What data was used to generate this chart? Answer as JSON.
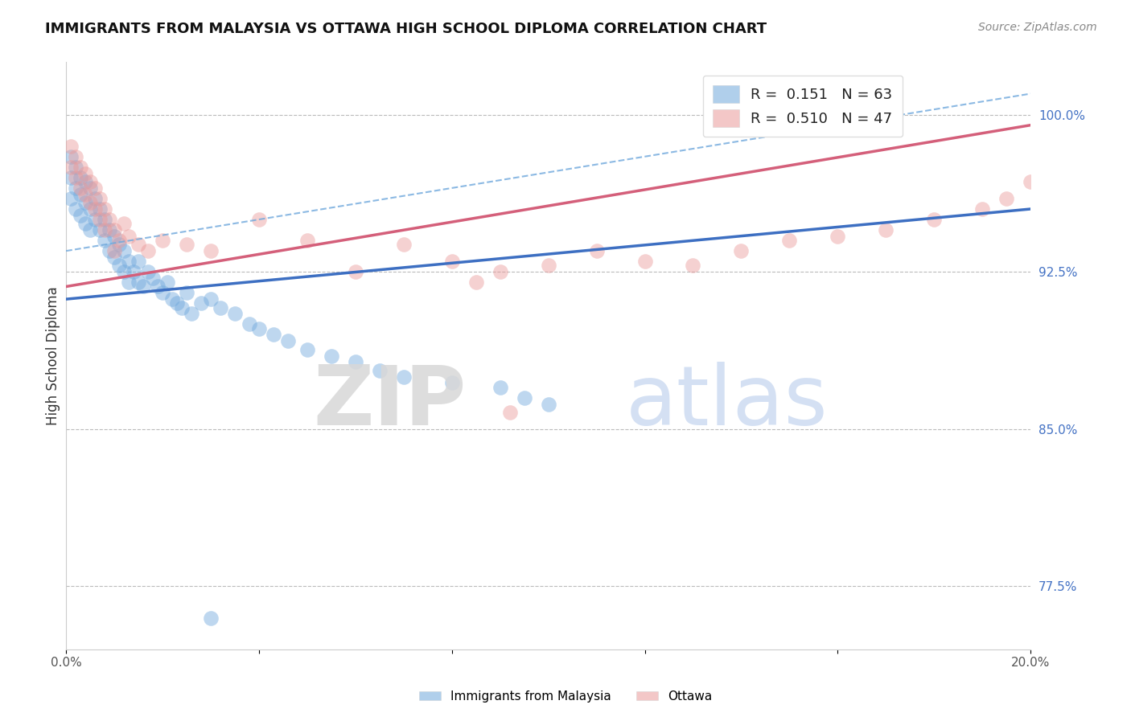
{
  "title": "IMMIGRANTS FROM MALAYSIA VS OTTAWA HIGH SCHOOL DIPLOMA CORRELATION CHART",
  "source": "Source: ZipAtlas.com",
  "ylabel": "High School Diploma",
  "x_min": 0.0,
  "x_max": 0.2,
  "y_min": 0.745,
  "y_max": 1.025,
  "x_tick_positions": [
    0.0,
    0.04,
    0.08,
    0.12,
    0.16,
    0.2
  ],
  "x_tick_labels": [
    "0.0%",
    "",
    "",
    "",
    "",
    "20.0%"
  ],
  "y_ticks_right": [
    0.775,
    0.85,
    0.925,
    1.0
  ],
  "y_tick_labels_right": [
    "77.5%",
    "85.0%",
    "92.5%",
    "100.0%"
  ],
  "legend_r1": "R =  0.151   N = 63",
  "legend_r2": "R =  0.510   N = 47",
  "series1_color": "#6fa8dc",
  "series2_color": "#ea9999",
  "series1_label": "Immigrants from Malaysia",
  "series2_label": "Ottawa",
  "line1_color": "#3d6fc2",
  "line2_color": "#d45f7a",
  "dashed_color": "#6fa8dc",
  "blue_x": [
    0.001,
    0.001,
    0.001,
    0.002,
    0.002,
    0.002,
    0.003,
    0.003,
    0.003,
    0.004,
    0.004,
    0.004,
    0.005,
    0.005,
    0.005,
    0.006,
    0.006,
    0.007,
    0.007,
    0.008,
    0.008,
    0.009,
    0.009,
    0.01,
    0.01,
    0.011,
    0.011,
    0.012,
    0.012,
    0.013,
    0.013,
    0.014,
    0.015,
    0.015,
    0.016,
    0.017,
    0.018,
    0.019,
    0.02,
    0.021,
    0.022,
    0.023,
    0.024,
    0.025,
    0.026,
    0.028,
    0.03,
    0.032,
    0.035,
    0.038,
    0.04,
    0.043,
    0.046,
    0.05,
    0.055,
    0.06,
    0.065,
    0.07,
    0.08,
    0.09,
    0.095,
    0.1,
    0.03
  ],
  "blue_y": [
    0.98,
    0.97,
    0.96,
    0.975,
    0.965,
    0.955,
    0.97,
    0.962,
    0.952,
    0.968,
    0.958,
    0.948,
    0.965,
    0.955,
    0.945,
    0.96,
    0.95,
    0.955,
    0.945,
    0.95,
    0.94,
    0.945,
    0.935,
    0.942,
    0.932,
    0.938,
    0.928,
    0.935,
    0.925,
    0.93,
    0.92,
    0.925,
    0.93,
    0.92,
    0.918,
    0.925,
    0.922,
    0.918,
    0.915,
    0.92,
    0.912,
    0.91,
    0.908,
    0.915,
    0.905,
    0.91,
    0.912,
    0.908,
    0.905,
    0.9,
    0.898,
    0.895,
    0.892,
    0.888,
    0.885,
    0.882,
    0.878,
    0.875,
    0.872,
    0.87,
    0.865,
    0.862,
    0.76
  ],
  "pink_x": [
    0.001,
    0.001,
    0.002,
    0.002,
    0.003,
    0.003,
    0.004,
    0.004,
    0.005,
    0.005,
    0.006,
    0.006,
    0.007,
    0.007,
    0.008,
    0.008,
    0.009,
    0.01,
    0.01,
    0.011,
    0.012,
    0.013,
    0.015,
    0.017,
    0.02,
    0.025,
    0.03,
    0.04,
    0.05,
    0.06,
    0.07,
    0.08,
    0.09,
    0.1,
    0.11,
    0.12,
    0.13,
    0.14,
    0.15,
    0.16,
    0.17,
    0.18,
    0.19,
    0.195,
    0.2,
    0.085,
    0.092
  ],
  "pink_y": [
    0.985,
    0.975,
    0.98,
    0.97,
    0.975,
    0.965,
    0.972,
    0.962,
    0.968,
    0.958,
    0.965,
    0.955,
    0.96,
    0.95,
    0.955,
    0.945,
    0.95,
    0.945,
    0.935,
    0.94,
    0.948,
    0.942,
    0.938,
    0.935,
    0.94,
    0.938,
    0.935,
    0.95,
    0.94,
    0.925,
    0.938,
    0.93,
    0.925,
    0.928,
    0.935,
    0.93,
    0.928,
    0.935,
    0.94,
    0.942,
    0.945,
    0.95,
    0.955,
    0.96,
    0.968,
    0.92,
    0.858
  ]
}
